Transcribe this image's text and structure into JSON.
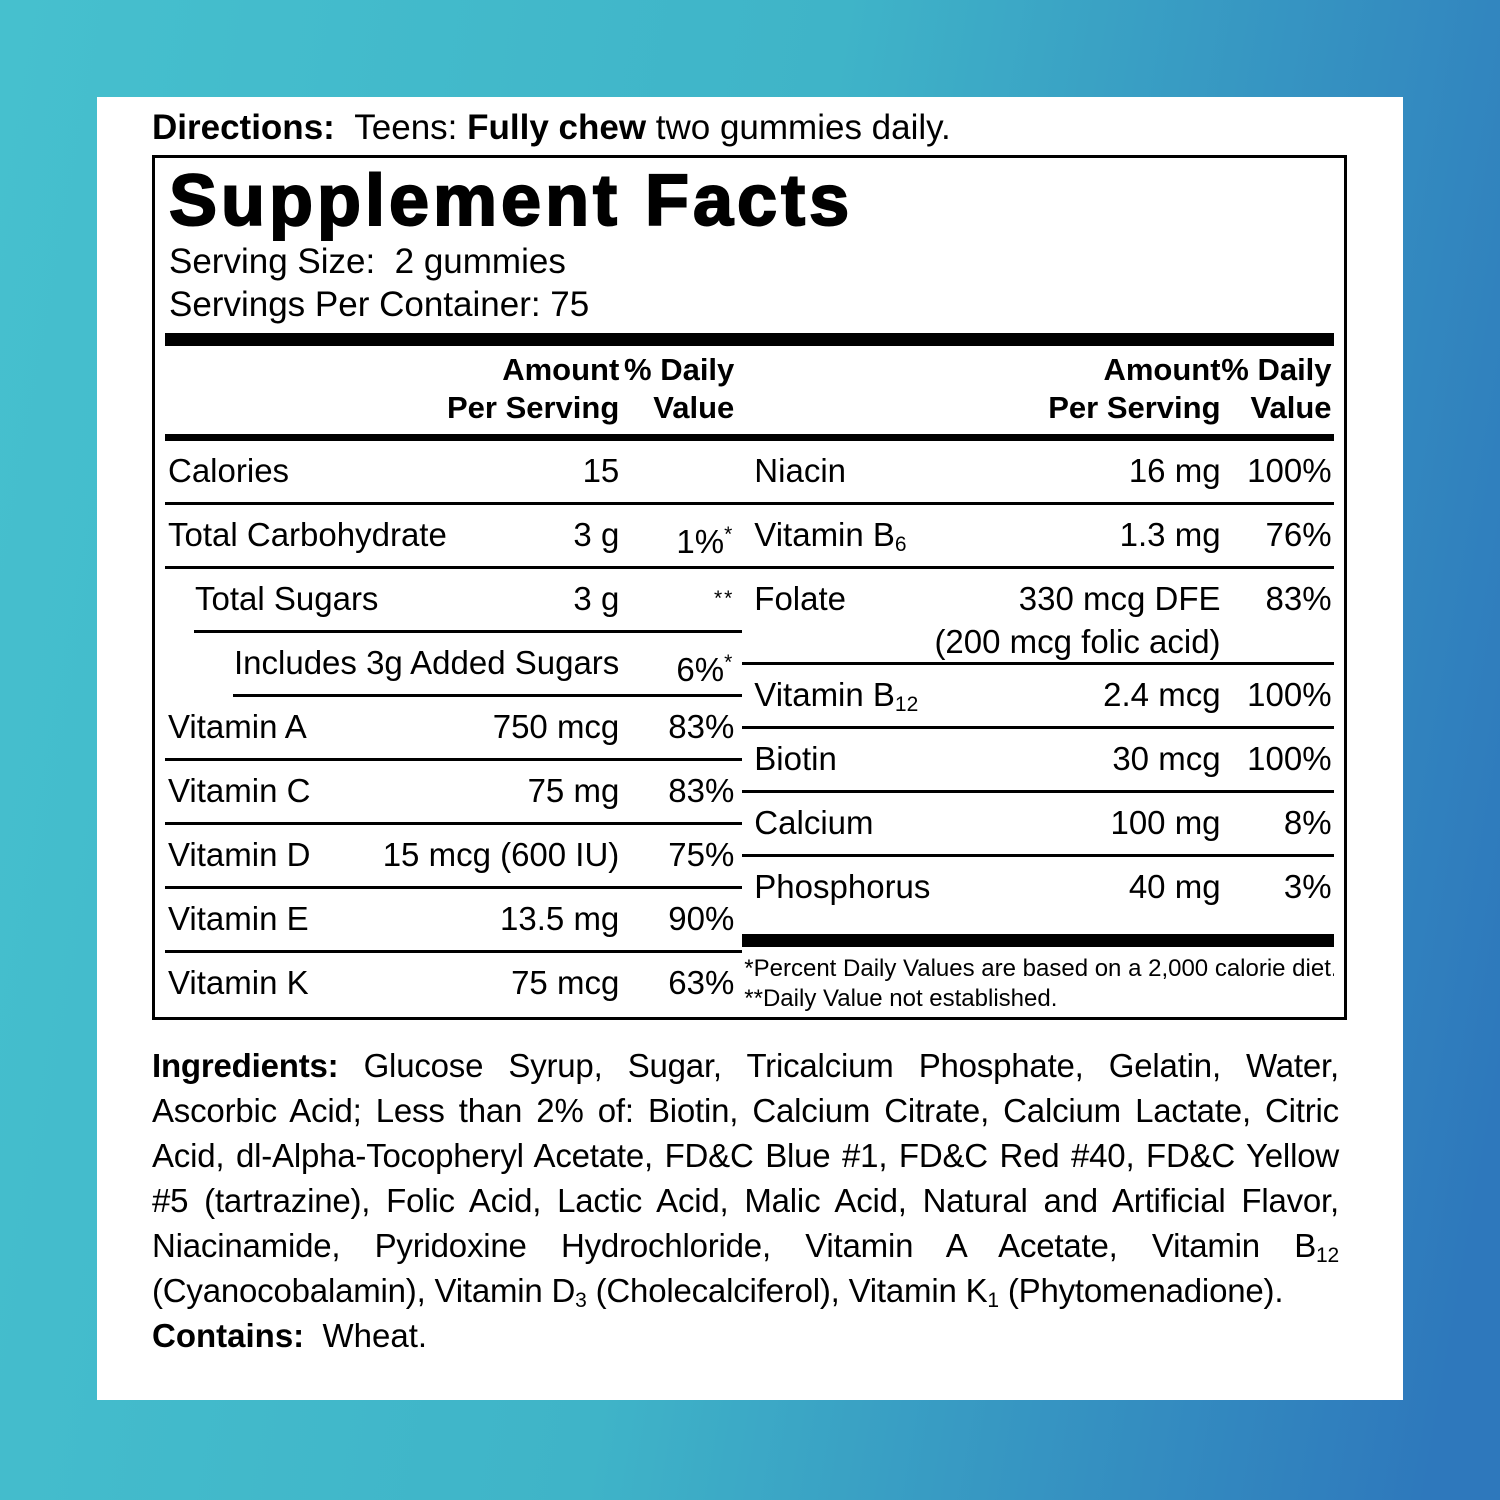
{
  "colors": {
    "background_gradient_left": "#46c0ce",
    "background_gradient_right": "#2e78bc",
    "panel": "#ffffff",
    "text": "#000000"
  },
  "directions": {
    "segments": [
      {
        "t": "Directions:",
        "b": true
      },
      {
        "t": "  Teens: "
      },
      {
        "t": "Fully chew",
        "b": true
      },
      {
        "t": " two gummies daily."
      }
    ]
  },
  "supplement_facts": {
    "title": "Supplement Facts",
    "serving_size": "Serving Size:  2 gummies",
    "servings_per_container": "Servings Per Container: 75",
    "header": {
      "amount_line1": "Amount",
      "amount_line2": "Per Serving",
      "dv_line1": "% Daily",
      "dv_line2": "Value"
    },
    "left_rows": [
      {
        "name": "Calories",
        "amount": "15",
        "pct": "",
        "star": "",
        "indent": 0,
        "sep": null
      },
      {
        "name": "Total Carbohydrate",
        "amount": "3 g",
        "pct": "1%",
        "star": "*",
        "indent": 0,
        "sep": 0
      },
      {
        "name": "Total Sugars",
        "amount": "3 g",
        "pct": "",
        "star": "**",
        "indent": 1,
        "sep": 0
      },
      {
        "name": "Includes 3g Added Sugars",
        "amount": "",
        "pct": "6%",
        "star": "*",
        "indent": 2,
        "sep": 1
      },
      {
        "name": "Vitamin A",
        "amount": "750 mcg",
        "pct": "83%",
        "star": "",
        "indent": 0,
        "sep": 2
      },
      {
        "name": "Vitamin C",
        "amount": "75 mg",
        "pct": "83%",
        "star": "",
        "indent": 0,
        "sep": 0
      },
      {
        "name": "Vitamin D",
        "amount": "15 mcg (600 IU)",
        "pct": "75%",
        "star": "",
        "indent": 0,
        "sep": 0
      },
      {
        "name": "Vitamin E",
        "amount": "13.5 mg",
        "pct": "90%",
        "star": "",
        "indent": 0,
        "sep": 0
      },
      {
        "name": "Vitamin K",
        "amount": "75 mcg",
        "pct": "63%",
        "star": "",
        "indent": 0,
        "sep": 0
      }
    ],
    "right_rows": [
      {
        "name": "Niacin",
        "amount": "16 mg",
        "pct": "100%",
        "star": "",
        "indent": 0,
        "sep": null
      },
      {
        "name": "Vitamin B",
        "name_sub": "6",
        "amount": "1.3 mg",
        "pct": "76%",
        "star": "",
        "indent": 0,
        "sep": 0
      },
      {
        "name": "Folate",
        "amount": "330 mcg DFE",
        "amount2": "(200 mcg folic acid)",
        "pct": "83%",
        "star": "",
        "indent": 0,
        "sep": 0
      },
      {
        "name": "Vitamin B",
        "name_sub": "12",
        "amount": "2.4 mcg",
        "pct": "100%",
        "star": "",
        "indent": 0,
        "sep": 0
      },
      {
        "name": "Biotin",
        "amount": "30 mcg",
        "pct": "100%",
        "star": "",
        "indent": 0,
        "sep": 0
      },
      {
        "name": "Calcium",
        "amount": "100 mg",
        "pct": "8%",
        "star": "",
        "indent": 0,
        "sep": 0
      },
      {
        "name": "Phosphorus",
        "amount": "40 mg",
        "pct": "3%",
        "star": "",
        "indent": 0,
        "sep": 0
      }
    ],
    "footnotes": [
      "*Percent Daily Values are based on a 2,000 calorie diet.",
      "**Daily Value not established."
    ]
  },
  "ingredients": {
    "segments": [
      {
        "t": "Ingredients:",
        "b": true
      },
      {
        "t": " Glucose Syrup, Sugar, Tricalcium Phosphate, Gelatin, Water, Ascorbic Acid; Less than 2% of: Biotin, Calcium Citrate, Calcium Lactate, Citric Acid, dl-Alpha-Tocopheryl Acetate, FD&C Blue #1, FD&C Red #40, FD&C Yellow #5 (tartrazine), Folic Acid, Lactic Acid, Malic Acid, Natural and Artificial Flavor, Niacinamide, Pyridoxine Hydrochloride, Vitamin A Acetate, Vitamin B"
      },
      {
        "t": "12",
        "sub": true
      },
      {
        "t": " (Cyanocobalamin), Vitamin D"
      },
      {
        "t": "3",
        "sub": true
      },
      {
        "t": " (Cholecalciferol), Vitamin K"
      },
      {
        "t": "1",
        "sub": true
      },
      {
        "t": " (Phytomenadione)."
      }
    ]
  },
  "contains": {
    "segments": [
      {
        "t": "Contains:",
        "b": true
      },
      {
        "t": "  Wheat."
      }
    ]
  }
}
